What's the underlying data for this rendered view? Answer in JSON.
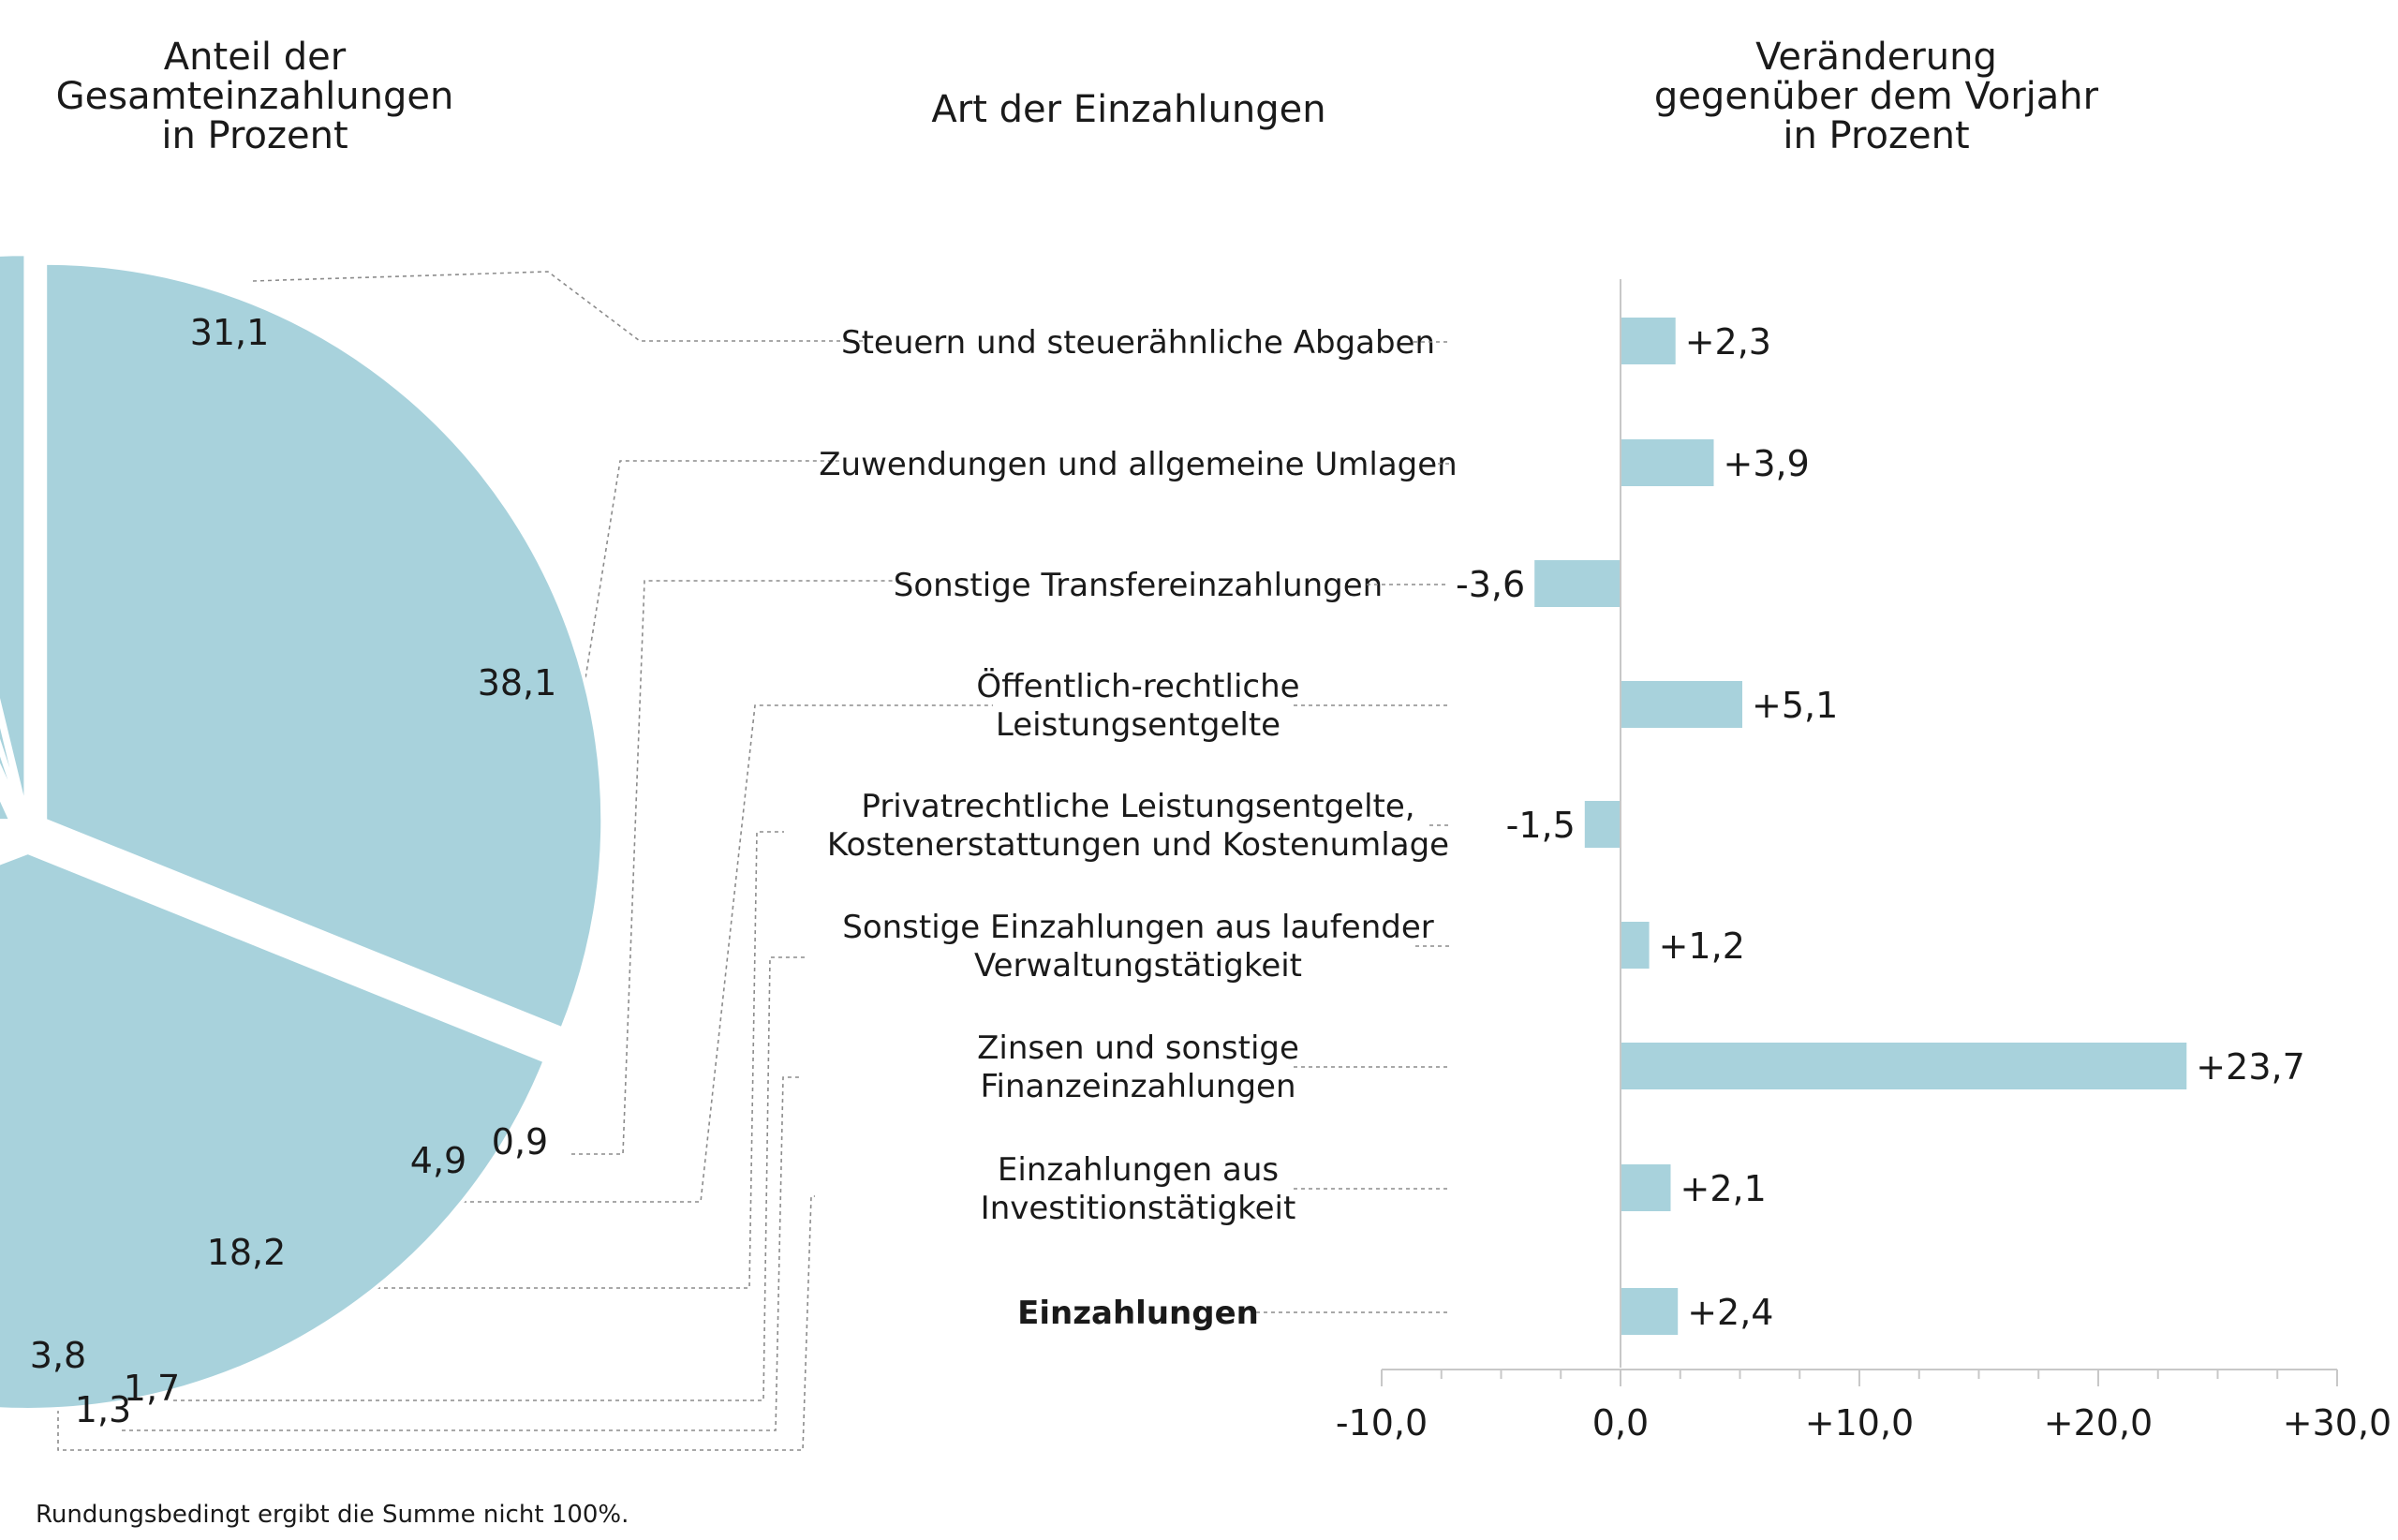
{
  "headers": {
    "share": [
      "Anteil der",
      "Gesamteinzahlungen",
      "in Prozent"
    ],
    "type": [
      "Art der Einzahlungen"
    ],
    "change": [
      "Veränderung",
      "gegenüber dem Vorjahr",
      "in Prozent"
    ]
  },
  "footnote": "Rundungsbedingt ergibt die Summe nicht 100%.",
  "colors": {
    "fill": "#a8d2dc",
    "leader": "#8c8c8c",
    "axis": "#c8c8c8",
    "text": "#1a1a1a"
  },
  "chart_data": [
    {
      "type": "pie",
      "title": "Anteil der Gesamteinzahlungen in Prozent",
      "categories": [
        "Steuern und steuerähnliche Abgaben",
        "Zuwendungen und allgemeine Umlagen",
        "Sonstige Transfereinzahlungen",
        "Öffentlich-rechtliche Leistungsentgelte",
        "Privatrechtliche Leistungsentgelte, Kostenerstattungen und Kostenumlage",
        "Sonstige Einzahlungen aus laufender Verwaltungstätigkeit",
        "Zinsen und sonstige Finanzeinzahlungen",
        "Einzahlungen aus Investitionstätigkeit"
      ],
      "values": [
        31.1,
        38.1,
        0.9,
        4.9,
        18.2,
        1.7,
        1.3,
        3.8
      ],
      "value_labels": [
        "31,1",
        "38,1",
        "0,9",
        "4,9",
        "18,2",
        "1,7",
        "1,3",
        "3,8"
      ]
    },
    {
      "type": "bar",
      "orientation": "horizontal",
      "title": "Veränderung gegenüber dem Vorjahr in Prozent",
      "categories": [
        [
          "Steuern und steuerähnliche Abgaben"
        ],
        [
          "Zuwendungen und allgemeine Umlagen"
        ],
        [
          "Sonstige Transfereinzahlungen"
        ],
        [
          "Öffentlich-rechtliche",
          "Leistungsentgelte"
        ],
        [
          "Privatrechtliche Leistungsentgelte,",
          "Kostenerstattungen und Kostenumlage"
        ],
        [
          "Sonstige Einzahlungen aus laufender",
          "Verwaltungstätigkeit"
        ],
        [
          "Zinsen und sonstige",
          "Finanzeinzahlungen"
        ],
        [
          "Einzahlungen aus",
          "Investitionstätigkeit"
        ],
        [
          "Einzahlungen"
        ]
      ],
      "values": [
        2.3,
        3.9,
        -3.6,
        5.1,
        -1.5,
        1.2,
        23.7,
        2.1,
        2.4
      ],
      "value_labels": [
        "+2,3",
        "+3,9",
        "-3,6",
        "+5,1",
        "-1,5",
        "+1,2",
        "+23,7",
        "+2,1",
        "+2,4"
      ],
      "xlim": [
        -10,
        30
      ],
      "ticks": [
        -10,
        0,
        10,
        20,
        30
      ],
      "tick_labels": [
        "-10,0",
        "0,0",
        "+10,0",
        "+20,0",
        "+30,0"
      ],
      "bold_category": "Einzahlungen"
    }
  ]
}
